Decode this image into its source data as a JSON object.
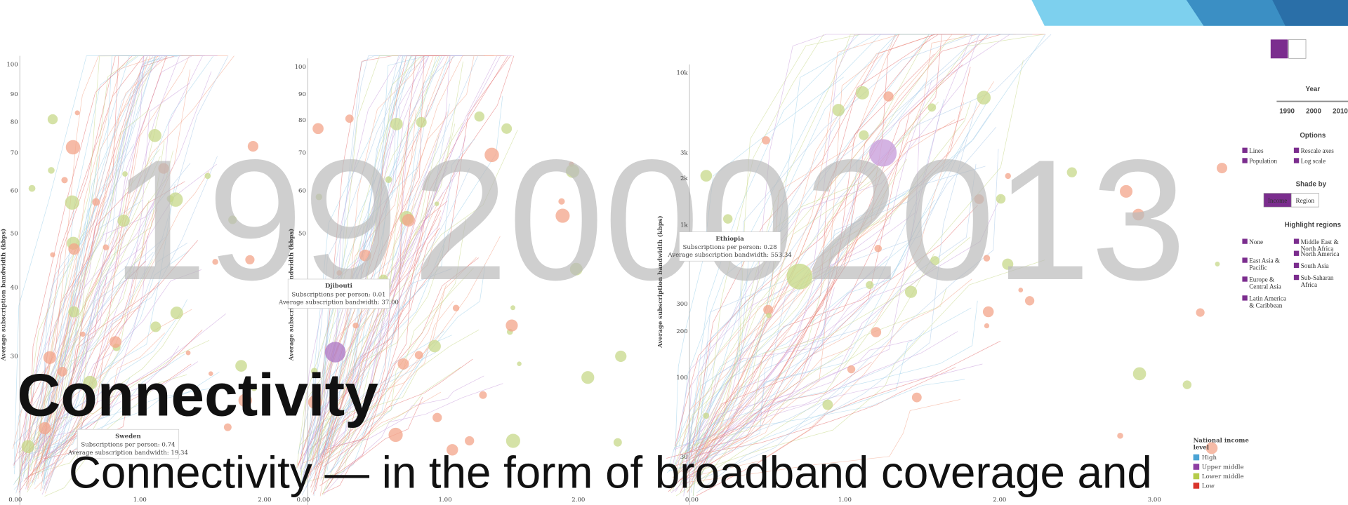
{
  "slide": {
    "title": "Connectivity",
    "body": "Connectivity — in the form of broadband coverage and"
  },
  "panels": [
    {
      "year": "199",
      "yaxis_label": "Average subscription bandwidth (kbps)",
      "yticks": [
        "100",
        "90",
        "80",
        "70",
        "60",
        "50",
        "40",
        "30"
      ],
      "xticks": [
        "0.00",
        "1.00",
        "2.00"
      ],
      "tooltip": {
        "name": "Sweden",
        "line1": "Subscriptions per person: 0.74",
        "line2": "Average subscription bandwidth: 19.34"
      }
    },
    {
      "year": "2000",
      "yaxis_label": "Average subscription bandwidth (kbps)",
      "yticks": [
        "100",
        "90",
        "80",
        "70",
        "60",
        "50"
      ],
      "xticks": [
        "0.00",
        "1.00",
        "2.00"
      ],
      "tooltip": {
        "name": "Djibouti",
        "line1": "Subscriptions per person: 0.01",
        "line2": "Average subscription bandwidth: 37.00"
      }
    },
    {
      "year": "2013",
      "yaxis_label": "Average subscription bandwidth (kbps)",
      "yticks": [
        "10k",
        "3k",
        "2k",
        "1k",
        "300",
        "200",
        "100",
        "30"
      ],
      "xticks": [
        "0.00",
        "1.00",
        "2.00",
        "3.00"
      ],
      "tooltip": {
        "name": "Ethiopia",
        "line1": "Subscriptions per person: 0.28",
        "line2": "Average subscription bandwidth: 553.34"
      }
    }
  ],
  "controls": {
    "year_label": "Year",
    "years": [
      "1990",
      "2000",
      "2010"
    ],
    "options_label": "Options",
    "options": [
      "Lines",
      "Rescale axes",
      "Population",
      "Log scale"
    ],
    "shade_label": "Shade by",
    "shade_buttons": [
      "Income",
      "Region"
    ],
    "highlight_label": "Highlight regions",
    "regions": [
      [
        "None"
      ],
      [
        "Middle East &",
        "North Africa"
      ],
      [
        "East Asia &",
        "Pacific"
      ],
      [
        "North America"
      ],
      [
        "Europe &",
        "Central Asia"
      ],
      [
        "South Asia"
      ],
      [
        "Latin America",
        "& Caribbean"
      ],
      [
        "Sub-Saharan",
        "Africa"
      ]
    ]
  },
  "legend": {
    "title": [
      "National income",
      "level"
    ],
    "items": [
      "High",
      "Upper middle",
      "Lower middle",
      "Low"
    ]
  }
}
